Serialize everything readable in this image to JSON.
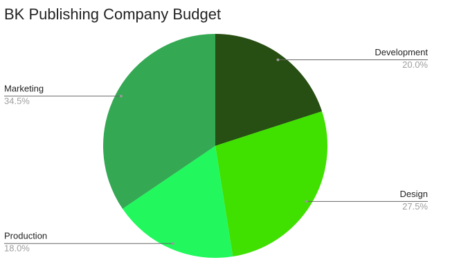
{
  "chart_data": {
    "type": "pie",
    "title": "BK Publishing Company Budget",
    "categories": [
      "Development",
      "Design",
      "Production",
      "Marketing"
    ],
    "values": [
      20,
      27.5,
      18,
      34.5
    ],
    "value_labels": [
      "20.0%",
      "27.5%",
      "18.0%",
      "34.5%"
    ],
    "colors": [
      "#274e13",
      "#40e000",
      "#22f85e",
      "#34a853"
    ]
  }
}
